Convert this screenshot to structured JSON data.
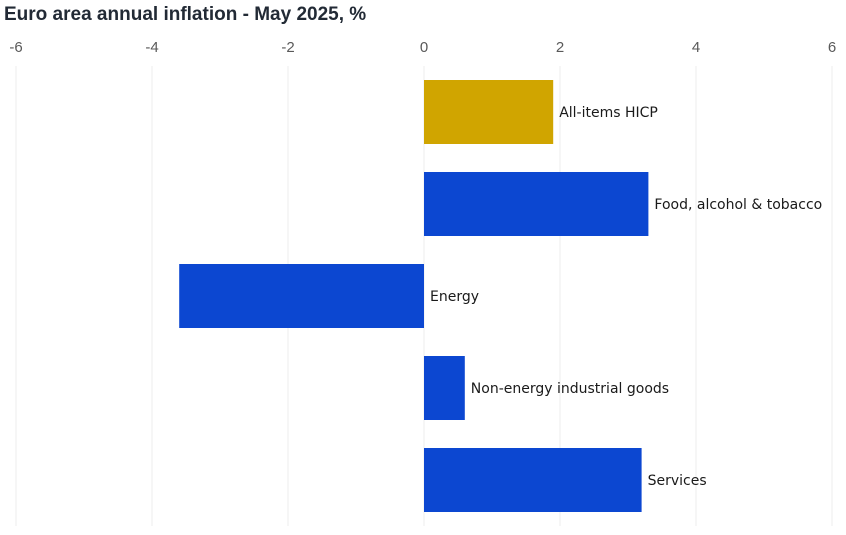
{
  "chart_data": {
    "type": "bar",
    "orientation": "horizontal",
    "title": "Euro area annual inflation - May 2025, %",
    "xlabel": "",
    "ylabel": "",
    "xlim": [
      -6,
      6
    ],
    "x_ticks": [
      -6,
      -4,
      -2,
      0,
      2,
      4,
      6
    ],
    "x_tick_labels": [
      "-6",
      "-4",
      "-2",
      "0",
      "2",
      "4",
      "6"
    ],
    "x_axis_position": "top",
    "grid": true,
    "legend": "none",
    "categories": [
      "All-items HICP",
      "Food, alcohol & tobacco",
      "Energy",
      "Non-energy industrial goods",
      "Services"
    ],
    "values": [
      1.9,
      3.3,
      -3.6,
      0.6,
      3.2
    ],
    "colors": [
      "#d0a500",
      "#0c47d1",
      "#0c47d1",
      "#0c47d1",
      "#0c47d1"
    ]
  }
}
